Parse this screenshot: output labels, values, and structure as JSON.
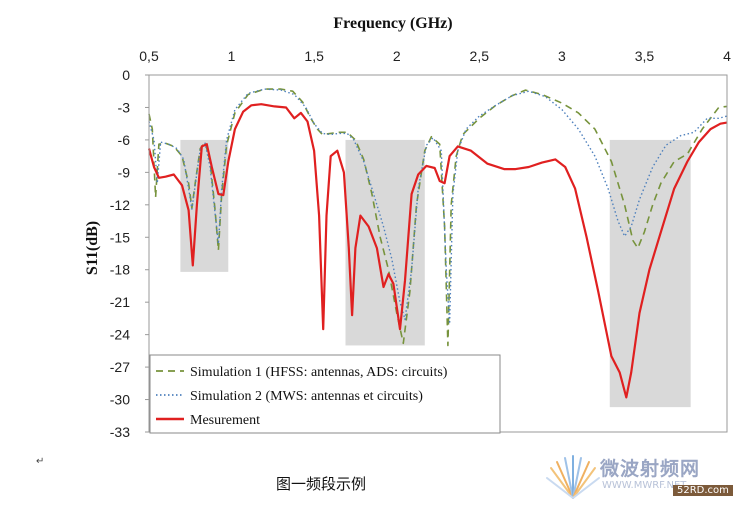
{
  "chart_data": {
    "type": "line",
    "title": "Frequency (GHz)",
    "xlabel": "Frequency (GHz)",
    "ylabel": "S11(dB)",
    "xlim": [
      0.5,
      4
    ],
    "ylim": [
      -33,
      0
    ],
    "x_ticks": [
      0.5,
      1,
      1.5,
      2,
      2.5,
      3,
      3.5,
      4
    ],
    "x_tick_labels": [
      "0,5",
      "1",
      "1,5",
      "2",
      "2,5",
      "3",
      "3,5",
      "4"
    ],
    "y_ticks": [
      0,
      -3,
      -6,
      -9,
      -12,
      -15,
      -18,
      -21,
      -24,
      -27,
      -30,
      -33
    ],
    "y_tick_labels": [
      "0",
      "-3",
      "-6",
      "-9",
      "-12",
      "-15",
      "-18",
      "-21",
      "-24",
      "-27",
      "-30",
      "-33"
    ],
    "x_axis_position": "top",
    "grid": false,
    "legend_position": "bottom-left",
    "highlight_bands": [
      {
        "x": [
          0.69,
          0.98
        ],
        "y": [
          -6,
          -18.2
        ]
      },
      {
        "x": [
          1.69,
          2.17
        ],
        "y": [
          -6,
          -25
        ]
      },
      {
        "x": [
          3.29,
          3.78
        ],
        "y": [
          -6,
          -30.7
        ]
      }
    ],
    "series": [
      {
        "name": "Simulation 1 (HFSS: antennas, ADS: circuits)",
        "color": "#77933c",
        "dash": "dashed",
        "points": [
          [
            0.5,
            -3.6
          ],
          [
            0.52,
            -5
          ],
          [
            0.54,
            -11.3
          ],
          [
            0.56,
            -6.4
          ],
          [
            0.6,
            -6.3
          ],
          [
            0.65,
            -6.6
          ],
          [
            0.7,
            -7.5
          ],
          [
            0.74,
            -10
          ],
          [
            0.76,
            -12.3
          ],
          [
            0.78,
            -10
          ],
          [
            0.81,
            -6.8
          ],
          [
            0.84,
            -6.2
          ],
          [
            0.87,
            -8
          ],
          [
            0.9,
            -12.5
          ],
          [
            0.92,
            -16.2
          ],
          [
            0.94,
            -11
          ],
          [
            0.97,
            -6.5
          ],
          [
            1.02,
            -3.5
          ],
          [
            1.1,
            -1.8
          ],
          [
            1.2,
            -1.3
          ],
          [
            1.3,
            -1.3
          ],
          [
            1.37,
            -1.5
          ],
          [
            1.43,
            -2.5
          ],
          [
            1.48,
            -4
          ],
          [
            1.52,
            -5
          ],
          [
            1.55,
            -5.5
          ],
          [
            1.6,
            -5.4
          ],
          [
            1.65,
            -5.3
          ],
          [
            1.7,
            -5.3
          ],
          [
            1.75,
            -6
          ],
          [
            1.8,
            -7.8
          ],
          [
            1.85,
            -11
          ],
          [
            1.9,
            -15
          ],
          [
            1.95,
            -18
          ],
          [
            2.0,
            -22
          ],
          [
            2.04,
            -24.8
          ],
          [
            2.08,
            -20
          ],
          [
            2.12,
            -12
          ],
          [
            2.17,
            -7
          ],
          [
            2.21,
            -5.7
          ],
          [
            2.26,
            -6.4
          ],
          [
            2.29,
            -14
          ],
          [
            2.31,
            -25
          ],
          [
            2.33,
            -12
          ],
          [
            2.36,
            -7.5
          ],
          [
            2.4,
            -5.5
          ],
          [
            2.5,
            -4
          ],
          [
            2.6,
            -2.8
          ],
          [
            2.7,
            -1.9
          ],
          [
            2.78,
            -1.4
          ],
          [
            2.88,
            -1.8
          ],
          [
            3.0,
            -2.6
          ],
          [
            3.1,
            -3.5
          ],
          [
            3.2,
            -5
          ],
          [
            3.3,
            -8
          ],
          [
            3.38,
            -12
          ],
          [
            3.43,
            -15.3
          ],
          [
            3.46,
            -16
          ],
          [
            3.5,
            -14.5
          ],
          [
            3.55,
            -12
          ],
          [
            3.6,
            -10
          ],
          [
            3.68,
            -8
          ],
          [
            3.76,
            -7.3
          ],
          [
            3.85,
            -5
          ],
          [
            3.95,
            -3
          ],
          [
            4.0,
            -2.9
          ]
        ]
      },
      {
        "name": "Simulation 2 (MWS: antennas et circuits)",
        "color": "#4f81bd",
        "dash": "dotted",
        "points": [
          [
            0.5,
            -4.3
          ],
          [
            0.53,
            -6
          ],
          [
            0.55,
            -10
          ],
          [
            0.57,
            -6.2
          ],
          [
            0.62,
            -6.4
          ],
          [
            0.67,
            -6.8
          ],
          [
            0.71,
            -7.8
          ],
          [
            0.74,
            -10.5
          ],
          [
            0.76,
            -12.4
          ],
          [
            0.78,
            -10.2
          ],
          [
            0.81,
            -6.9
          ],
          [
            0.84,
            -6.3
          ],
          [
            0.87,
            -8.5
          ],
          [
            0.9,
            -12.8
          ],
          [
            0.92,
            -15.6
          ],
          [
            0.94,
            -10.5
          ],
          [
            0.97,
            -6
          ],
          [
            1.02,
            -3.2
          ],
          [
            1.1,
            -1.7
          ],
          [
            1.2,
            -1.3
          ],
          [
            1.3,
            -1.4
          ],
          [
            1.38,
            -1.8
          ],
          [
            1.45,
            -3
          ],
          [
            1.5,
            -4.5
          ],
          [
            1.55,
            -5.4
          ],
          [
            1.6,
            -5.5
          ],
          [
            1.65,
            -5.4
          ],
          [
            1.7,
            -5.4
          ],
          [
            1.74,
            -6
          ],
          [
            1.8,
            -8
          ],
          [
            1.86,
            -11
          ],
          [
            1.92,
            -14
          ],
          [
            1.97,
            -17
          ],
          [
            2.02,
            -21
          ],
          [
            2.05,
            -22.6
          ],
          [
            2.09,
            -18
          ],
          [
            2.13,
            -10.5
          ],
          [
            2.18,
            -6.5
          ],
          [
            2.22,
            -5.8
          ],
          [
            2.27,
            -7
          ],
          [
            2.3,
            -18
          ],
          [
            2.32,
            -23
          ],
          [
            2.34,
            -11
          ],
          [
            2.37,
            -7
          ],
          [
            2.42,
            -5
          ],
          [
            2.5,
            -3.8
          ],
          [
            2.6,
            -2.8
          ],
          [
            2.7,
            -1.9
          ],
          [
            2.8,
            -1.5
          ],
          [
            2.9,
            -2
          ],
          [
            3.0,
            -3.2
          ],
          [
            3.1,
            -5
          ],
          [
            3.2,
            -7.5
          ],
          [
            3.28,
            -10.5
          ],
          [
            3.34,
            -13.5
          ],
          [
            3.38,
            -14.9
          ],
          [
            3.42,
            -14
          ],
          [
            3.47,
            -11.5
          ],
          [
            3.55,
            -8.5
          ],
          [
            3.63,
            -6.5
          ],
          [
            3.72,
            -5.6
          ],
          [
            3.8,
            -5.3
          ],
          [
            3.88,
            -4
          ],
          [
            3.95,
            -4
          ],
          [
            4.0,
            -3.8
          ]
        ]
      },
      {
        "name": "Mesurement",
        "color": "#e02020",
        "dash": "solid",
        "points": [
          [
            0.5,
            -6.8
          ],
          [
            0.53,
            -8.5
          ],
          [
            0.56,
            -9.5
          ],
          [
            0.6,
            -9.4
          ],
          [
            0.65,
            -9.2
          ],
          [
            0.7,
            -10.2
          ],
          [
            0.74,
            -12.5
          ],
          [
            0.765,
            -17.6
          ],
          [
            0.79,
            -12
          ],
          [
            0.82,
            -6.6
          ],
          [
            0.85,
            -6.4
          ],
          [
            0.88,
            -8.5
          ],
          [
            0.92,
            -11
          ],
          [
            0.95,
            -11.1
          ],
          [
            0.98,
            -8
          ],
          [
            1.02,
            -5
          ],
          [
            1.07,
            -3.4
          ],
          [
            1.12,
            -2.8
          ],
          [
            1.18,
            -2.7
          ],
          [
            1.26,
            -2.9
          ],
          [
            1.33,
            -3
          ],
          [
            1.38,
            -4
          ],
          [
            1.42,
            -3.5
          ],
          [
            1.46,
            -4.3
          ],
          [
            1.5,
            -7
          ],
          [
            1.53,
            -13
          ],
          [
            1.555,
            -23.5
          ],
          [
            1.575,
            -13
          ],
          [
            1.6,
            -7.5
          ],
          [
            1.64,
            -7
          ],
          [
            1.68,
            -9
          ],
          [
            1.71,
            -16
          ],
          [
            1.73,
            -22.2
          ],
          [
            1.75,
            -16
          ],
          [
            1.78,
            -13
          ],
          [
            1.83,
            -14
          ],
          [
            1.88,
            -16
          ],
          [
            1.92,
            -19.6
          ],
          [
            1.95,
            -18.4
          ],
          [
            1.98,
            -19.3
          ],
          [
            2.02,
            -23.5
          ],
          [
            2.05,
            -19
          ],
          [
            2.09,
            -11
          ],
          [
            2.13,
            -9.2
          ],
          [
            2.18,
            -8.4
          ],
          [
            2.23,
            -8.6
          ],
          [
            2.26,
            -9.8
          ],
          [
            2.29,
            -10
          ],
          [
            2.32,
            -7.5
          ],
          [
            2.37,
            -6.6
          ],
          [
            2.45,
            -7
          ],
          [
            2.55,
            -8.2
          ],
          [
            2.65,
            -8.7
          ],
          [
            2.72,
            -8.7
          ],
          [
            2.8,
            -8.5
          ],
          [
            2.88,
            -8.1
          ],
          [
            2.96,
            -7.8
          ],
          [
            3.02,
            -8.5
          ],
          [
            3.08,
            -10.5
          ],
          [
            3.15,
            -15
          ],
          [
            3.22,
            -20
          ],
          [
            3.3,
            -26
          ],
          [
            3.35,
            -27.5
          ],
          [
            3.39,
            -29.8
          ],
          [
            3.42,
            -27.5
          ],
          [
            3.47,
            -22
          ],
          [
            3.53,
            -18
          ],
          [
            3.6,
            -14.5
          ],
          [
            3.68,
            -10.5
          ],
          [
            3.76,
            -8
          ],
          [
            3.83,
            -6.2
          ],
          [
            3.9,
            -5
          ],
          [
            3.96,
            -4.5
          ],
          [
            4.0,
            -4.4
          ]
        ]
      }
    ]
  },
  "caption": "图一频段示例",
  "paragraph_mark": "↵",
  "watermark": {
    "title": "微波射频网",
    "url": "WWW.MWRF.NET",
    "badge": "52RD.com"
  }
}
